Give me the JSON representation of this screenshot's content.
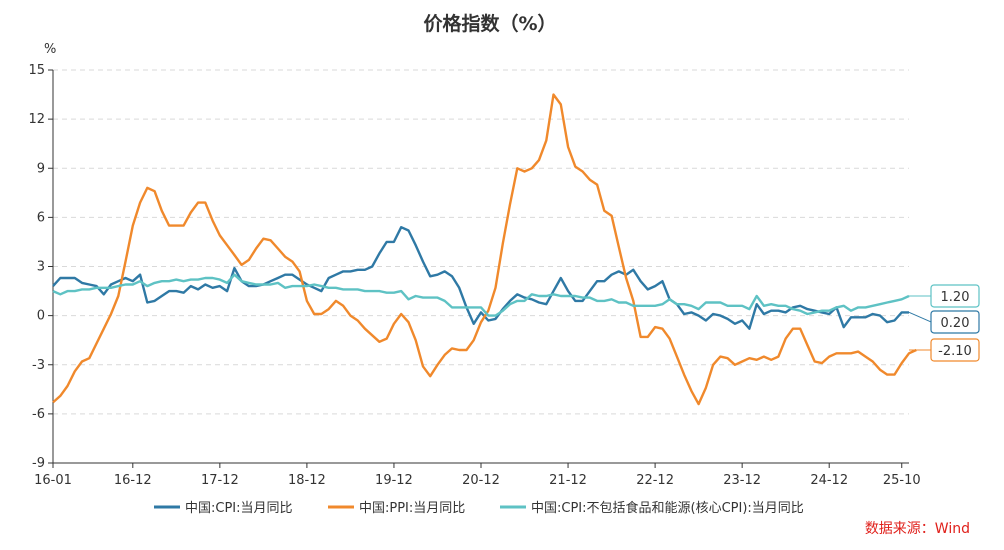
{
  "chart_data": {
    "type": "line",
    "title": "价格指数（%）",
    "ylabel": "%",
    "ylim": [
      -9,
      15
    ],
    "yticks": [
      -9,
      -6,
      -3,
      0,
      3,
      6,
      9,
      12,
      15
    ],
    "xticks": [
      {
        "label": "16-01",
        "index": 0
      },
      {
        "label": "16-12",
        "index": 11
      },
      {
        "label": "17-12",
        "index": 23
      },
      {
        "label": "18-12",
        "index": 35
      },
      {
        "label": "19-12",
        "index": 47
      },
      {
        "label": "20-12",
        "index": 59
      },
      {
        "label": "21-12",
        "index": 71
      },
      {
        "label": "22-12",
        "index": 83
      },
      {
        "label": "23-12",
        "index": 95
      },
      {
        "label": "24-12",
        "index": 107
      },
      {
        "label": "25-10",
        "index": 117
      }
    ],
    "grid": "horizontal dashed",
    "legend_position": "bottom",
    "source": "数据来源：Wind",
    "series": [
      {
        "name": "中国:CPI:当月同比",
        "color": "#2f79a5",
        "end_label": "0.20",
        "values": [
          1.8,
          2.3,
          2.3,
          2.3,
          2.0,
          1.9,
          1.8,
          1.3,
          1.9,
          2.1,
          2.3,
          2.1,
          2.5,
          0.8,
          0.9,
          1.2,
          1.5,
          1.5,
          1.4,
          1.8,
          1.6,
          1.9,
          1.7,
          1.8,
          1.5,
          2.9,
          2.1,
          1.8,
          1.8,
          1.9,
          2.1,
          2.3,
          2.5,
          2.5,
          2.2,
          1.9,
          1.7,
          1.5,
          2.3,
          2.5,
          2.7,
          2.7,
          2.8,
          2.8,
          3.0,
          3.8,
          4.5,
          4.5,
          5.4,
          5.2,
          4.3,
          3.3,
          2.4,
          2.5,
          2.7,
          2.4,
          1.7,
          0.5,
          -0.5,
          0.2,
          -0.3,
          -0.2,
          0.4,
          0.9,
          1.3,
          1.1,
          1.0,
          0.8,
          0.7,
          1.5,
          2.3,
          1.5,
          0.9,
          0.9,
          1.5,
          2.1,
          2.1,
          2.5,
          2.7,
          2.5,
          2.8,
          2.1,
          1.6,
          1.8,
          2.1,
          1.0,
          0.7,
          0.1,
          0.2,
          0.0,
          -0.3,
          0.1,
          0.0,
          -0.2,
          -0.5,
          -0.3,
          -0.8,
          0.7,
          0.1,
          0.3,
          0.3,
          0.2,
          0.5,
          0.6,
          0.4,
          0.3,
          0.2,
          0.1,
          0.5,
          -0.7,
          -0.1,
          -0.1,
          -0.1,
          0.1,
          0.0,
          -0.4,
          -0.3,
          0.2,
          0.2
        ]
      },
      {
        "name": "中国:PPI:当月同比",
        "color": "#f0892c",
        "end_label": "-2.10",
        "values": [
          -5.3,
          -4.9,
          -4.3,
          -3.4,
          -2.8,
          -2.6,
          -1.7,
          -0.8,
          0.1,
          1.2,
          3.3,
          5.5,
          6.9,
          7.8,
          7.6,
          6.4,
          5.5,
          5.5,
          5.5,
          6.3,
          6.9,
          6.9,
          5.8,
          4.9,
          4.3,
          3.7,
          3.1,
          3.4,
          4.1,
          4.7,
          4.6,
          4.1,
          3.6,
          3.3,
          2.7,
          0.9,
          0.1,
          0.1,
          0.4,
          0.9,
          0.6,
          0.0,
          -0.3,
          -0.8,
          -1.2,
          -1.6,
          -1.4,
          -0.5,
          0.1,
          -0.4,
          -1.5,
          -3.1,
          -3.7,
          -3.0,
          -2.4,
          -2.0,
          -2.1,
          -2.1,
          -1.5,
          -0.4,
          0.3,
          1.7,
          4.4,
          6.8,
          9.0,
          8.8,
          9.0,
          9.5,
          10.7,
          13.5,
          12.9,
          10.3,
          9.1,
          8.8,
          8.3,
          8.0,
          6.4,
          6.1,
          4.2,
          2.3,
          0.9,
          -1.3,
          -1.3,
          -0.7,
          -0.8,
          -1.4,
          -2.5,
          -3.6,
          -4.6,
          -5.4,
          -4.4,
          -3.0,
          -2.5,
          -2.6,
          -3.0,
          -2.8,
          -2.6,
          -2.7,
          -2.5,
          -2.7,
          -2.5,
          -1.4,
          -0.8,
          -0.8,
          -1.8,
          -2.8,
          -2.9,
          -2.5,
          -2.3,
          -2.3,
          -2.3,
          -2.2,
          -2.5,
          -2.8,
          -3.3,
          -3.6,
          -3.6,
          -2.9,
          -2.3,
          -2.1
        ]
      },
      {
        "name": "中国:CPI:不包括食品和能源(核心CPI):当月同比",
        "color": "#5ec2c4",
        "end_label": "1.20",
        "values": [
          1.5,
          1.3,
          1.5,
          1.5,
          1.6,
          1.6,
          1.7,
          1.7,
          1.7,
          1.8,
          1.9,
          1.9,
          2.1,
          1.8,
          2.0,
          2.1,
          2.1,
          2.2,
          2.1,
          2.2,
          2.2,
          2.3,
          2.3,
          2.2,
          2.0,
          2.5,
          2.1,
          2.0,
          1.9,
          1.9,
          1.9,
          2.0,
          1.7,
          1.8,
          1.8,
          1.8,
          1.9,
          1.8,
          1.7,
          1.7,
          1.6,
          1.6,
          1.6,
          1.5,
          1.5,
          1.5,
          1.4,
          1.4,
          1.5,
          1.0,
          1.2,
          1.1,
          1.1,
          1.1,
          0.9,
          0.5,
          0.5,
          0.5,
          0.5,
          0.5,
          0,
          0,
          0.3,
          0.7,
          0.9,
          0.9,
          1.3,
          1.2,
          1.2,
          1.3,
          1.2,
          1.2,
          1.2,
          1.1,
          1.1,
          0.9,
          0.9,
          1.0,
          0.8,
          0.8,
          0.6,
          0.6,
          0.6,
          0.6,
          0.7,
          1.0,
          0.7,
          0.7,
          0.6,
          0.4,
          0.8,
          0.8,
          0.8,
          0.6,
          0.6,
          0.6,
          0.4,
          1.2,
          0.6,
          0.7,
          0.6,
          0.6,
          0.4,
          0.3,
          0.1,
          0.2,
          0.3,
          0.3,
          0.5,
          0.6,
          0.3,
          0.5,
          0.5,
          0.6,
          0.7,
          0.8,
          0.9,
          1.0,
          1.2
        ]
      }
    ]
  }
}
